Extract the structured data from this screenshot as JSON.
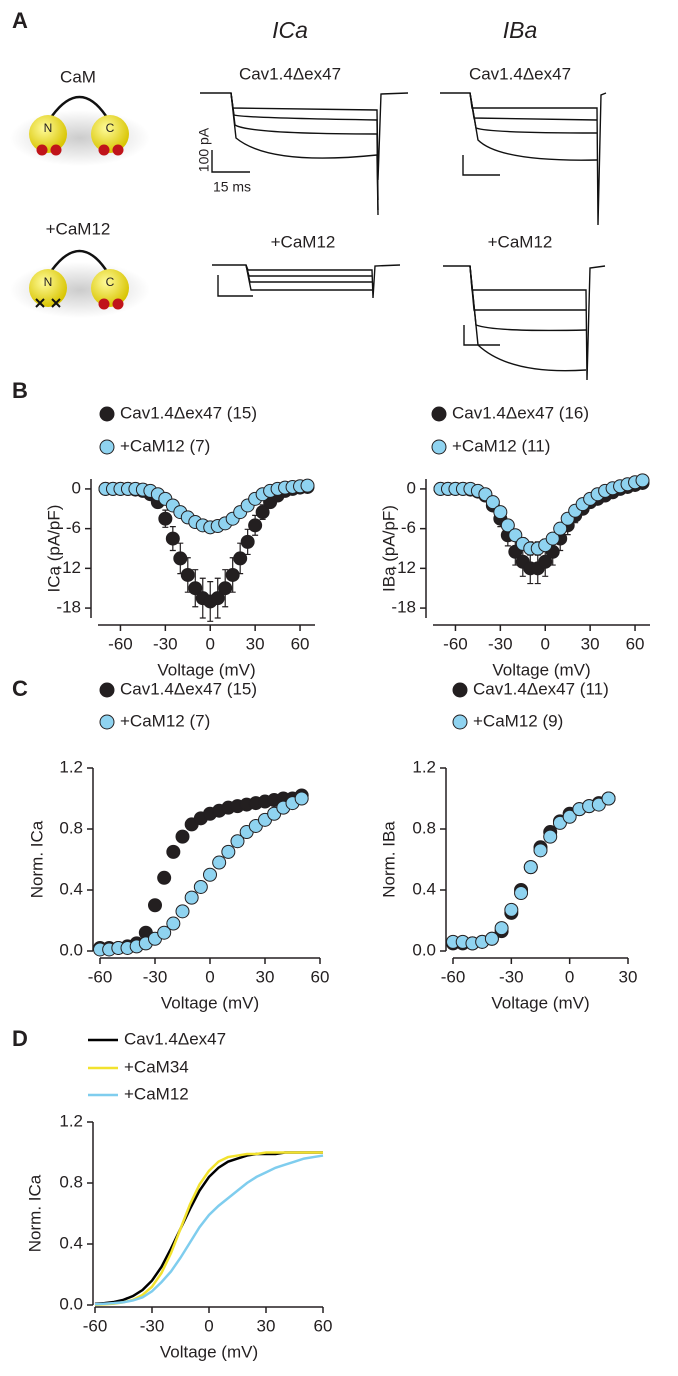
{
  "panel_labels": [
    "A",
    "B",
    "C",
    "D"
  ],
  "panel_a": {
    "columns": [
      "ICa",
      "IBa"
    ],
    "rows": [
      "CaM",
      "+CaM12"
    ],
    "lobes": [
      "N",
      "C",
      "N",
      "C"
    ],
    "trace_labels": [
      "Cav1.4Δex47",
      "Cav1.4Δex47",
      "+CaM12",
      "+CaM12"
    ],
    "scale_bar": [
      "100 pA",
      "15 ms"
    ]
  },
  "chart_data": [
    {
      "type": "scatter",
      "x_label": "Voltage (mV)",
      "y_label": "ICa (pA/pF)",
      "xlim": [
        -75,
        70
      ],
      "ylim": [
        -19.5,
        1.5
      ],
      "xticks": [
        -60,
        -30,
        0,
        30,
        60
      ],
      "yticks": [
        0,
        -6,
        -12,
        -18
      ],
      "x": [
        -70,
        -65,
        -60,
        -55,
        -50,
        -45,
        -40,
        -35,
        -30,
        -25,
        -20,
        -15,
        -10,
        -5,
        0,
        5,
        10,
        15,
        20,
        25,
        30,
        35,
        40,
        45,
        50,
        55,
        60,
        65
      ],
      "series": [
        {
          "name": "Cav1.4Δex47 (15)",
          "color": "#231f20",
          "values": [
            0,
            0,
            0,
            0,
            -0.1,
            -0.3,
            -0.8,
            -2,
            -4.5,
            -7.5,
            -10.5,
            -13,
            -15,
            -16.5,
            -17,
            -16.5,
            -15,
            -13,
            -10.5,
            -8,
            -5.5,
            -3.5,
            -2,
            -1,
            -0.3,
            0,
            0.2,
            0.3
          ],
          "errors": [
            0,
            0,
            0,
            0,
            0.1,
            0.2,
            0.4,
            0.8,
            1.3,
            1.8,
            2.3,
            2.6,
            2.8,
            3,
            3,
            3,
            2.8,
            2.6,
            2.3,
            1.9,
            1.5,
            1.1,
            0.7,
            0.5,
            0.3,
            0.2,
            0.2,
            0.2
          ]
        },
        {
          "name": "+CaM12 (7)",
          "color": "#8fd3f0",
          "values": [
            0,
            0,
            0,
            0,
            0,
            -0.1,
            -0.3,
            -0.8,
            -1.5,
            -2.5,
            -3.5,
            -4.3,
            -5,
            -5.5,
            -5.8,
            -5.6,
            -5.2,
            -4.5,
            -3.5,
            -2.5,
            -1.5,
            -0.8,
            -0.3,
            0,
            0.2,
            0.3,
            0.4,
            0.5
          ],
          "errors": [
            0,
            0,
            0,
            0,
            0,
            0.1,
            0.1,
            0.2,
            0.3,
            0.4,
            0.5,
            0.5,
            0.6,
            0.6,
            0.6,
            0.6,
            0.6,
            0.5,
            0.5,
            0.4,
            0.3,
            0.2,
            0.2,
            0.1,
            0.1,
            0.1,
            0.1,
            0.1
          ]
        }
      ]
    },
    {
      "type": "scatter",
      "x_label": "Voltage (mV)",
      "y_label": "IBa (pA/pF)",
      "xlim": [
        -75,
        70
      ],
      "ylim": [
        -19.5,
        1.5
      ],
      "xticks": [
        -60,
        -30,
        0,
        30,
        60
      ],
      "yticks": [
        0,
        -6,
        -12,
        -18
      ],
      "x": [
        -70,
        -65,
        -60,
        -55,
        -50,
        -45,
        -40,
        -35,
        -30,
        -25,
        -20,
        -15,
        -10,
        -5,
        0,
        5,
        10,
        15,
        20,
        25,
        30,
        35,
        40,
        45,
        50,
        55,
        60,
        65
      ],
      "series": [
        {
          "name": "Cav1.4Δex47 (16)",
          "color": "#231f20",
          "values": [
            0,
            0,
            0,
            0,
            -0.1,
            -0.4,
            -1,
            -2.5,
            -4.5,
            -7,
            -9.5,
            -11,
            -12,
            -12,
            -11,
            -9.5,
            -7.5,
            -5.5,
            -4,
            -3,
            -2,
            -1.5,
            -1,
            -0.5,
            0,
            0.3,
            0.6,
            0.9
          ],
          "errors": [
            0,
            0,
            0,
            0,
            0.1,
            0.2,
            0.4,
            0.8,
            1.2,
            1.6,
            2,
            2.2,
            2.3,
            2.3,
            2.2,
            2,
            1.8,
            1.4,
            1.1,
            0.8,
            0.6,
            0.5,
            0.4,
            0.3,
            0.2,
            0.2,
            0.2,
            0.2
          ]
        },
        {
          "name": "+CaM12 (11)",
          "color": "#8fd3f0",
          "values": [
            0,
            0,
            0,
            0,
            0,
            -0.3,
            -0.8,
            -2,
            -3.5,
            -5.5,
            -7,
            -8.3,
            -9,
            -9,
            -8.5,
            -7.5,
            -6,
            -4.5,
            -3.3,
            -2.3,
            -1.5,
            -0.8,
            -0.3,
            0.1,
            0.4,
            0.7,
            1,
            1.3
          ],
          "errors": [
            0,
            0,
            0,
            0,
            0,
            0.1,
            0.2,
            0.3,
            0.5,
            0.7,
            0.8,
            0.9,
            1,
            1,
            0.9,
            0.8,
            0.7,
            0.6,
            0.5,
            0.4,
            0.3,
            0.2,
            0.2,
            0.1,
            0.1,
            0.1,
            0.1,
            0.1
          ]
        }
      ]
    },
    {
      "type": "scatter",
      "x_label": "Voltage (mV)",
      "y_label": "Norm. ICa",
      "xlim": [
        -60,
        60
      ],
      "ylim": [
        0,
        1.2
      ],
      "xticks": [
        -60,
        -30,
        0,
        30,
        60
      ],
      "yticks": [
        {
          "value": 0,
          "label": "0.0"
        },
        0.4,
        0.8,
        1.2
      ],
      "x": [
        -60,
        -55,
        -50,
        -45,
        -40,
        -35,
        -30,
        -25,
        -20,
        -15,
        -10,
        -5,
        0,
        5,
        10,
        15,
        20,
        25,
        30,
        35,
        40,
        45,
        50
      ],
      "series": [
        {
          "name": "Cav1.4Δex47 (15)",
          "color": "#231f20",
          "values": [
            0.02,
            0.02,
            0.02,
            0.03,
            0.05,
            0.12,
            0.3,
            0.48,
            0.65,
            0.75,
            0.83,
            0.87,
            0.9,
            0.92,
            0.94,
            0.95,
            0.96,
            0.97,
            0.98,
            0.99,
            1.0,
            1.0,
            1.02
          ]
        },
        {
          "name": "+CaM12 (7)",
          "color": "#8fd3f0",
          "values": [
            0.01,
            0.01,
            0.02,
            0.02,
            0.03,
            0.05,
            0.08,
            0.12,
            0.18,
            0.26,
            0.35,
            0.42,
            0.5,
            0.58,
            0.65,
            0.72,
            0.78,
            0.82,
            0.86,
            0.9,
            0.94,
            0.97,
            1.0
          ]
        }
      ]
    },
    {
      "type": "scatter",
      "x_label": "Voltage (mV)",
      "y_label": "Norm. IBa",
      "xlim": [
        -60,
        30
      ],
      "ylim": [
        0,
        1.2
      ],
      "xticks": [
        -60,
        -30,
        0,
        30
      ],
      "yticks": [
        {
          "value": 0,
          "label": "0.0"
        },
        0.4,
        0.8,
        1.2
      ],
      "x": [
        -60,
        -55,
        -50,
        -45,
        -40,
        -35,
        -30,
        -25,
        -20,
        -15,
        -10,
        -5,
        0,
        5,
        10,
        15,
        20
      ],
      "series": [
        {
          "name": "Cav1.4Δex47 (11)",
          "color": "#231f20",
          "values": [
            0.05,
            0.05,
            0.05,
            0.06,
            0.08,
            0.13,
            0.25,
            0.4,
            0.55,
            0.68,
            0.78,
            0.85,
            0.9,
            0.93,
            0.95,
            0.97,
            1.0
          ]
        },
        {
          "name": "+CaM12 (9)",
          "color": "#8fd3f0",
          "values": [
            0.06,
            0.06,
            0.05,
            0.06,
            0.08,
            0.15,
            0.27,
            0.38,
            0.55,
            0.66,
            0.75,
            0.84,
            0.88,
            0.93,
            0.95,
            0.96,
            1.0
          ]
        }
      ]
    },
    {
      "type": "line",
      "x_label": "Voltage (mV)",
      "y_label": "Norm. ICa",
      "xlim": [
        -60,
        60
      ],
      "ylim": [
        0,
        1.2
      ],
      "xticks": [
        -60,
        -30,
        0,
        30,
        60
      ],
      "yticks": [
        {
          "value": 0,
          "label": "0.0"
        },
        0.4,
        0.8,
        1.2
      ],
      "x": [
        -60,
        -55,
        -50,
        -45,
        -40,
        -35,
        -30,
        -25,
        -20,
        -15,
        -10,
        -5,
        0,
        5,
        10,
        15,
        20,
        25,
        30,
        35,
        40,
        45,
        50,
        55,
        60
      ],
      "series": [
        {
          "name": "Cav1.4Δex47",
          "color": "#000000",
          "values": [
            0.007,
            0.012,
            0.02,
            0.034,
            0.059,
            0.098,
            0.16,
            0.25,
            0.37,
            0.5,
            0.63,
            0.75,
            0.84,
            0.9,
            0.94,
            0.96,
            0.98,
            0.99,
            0.99,
            0.99,
            1,
            1,
            1,
            1,
            1
          ]
        },
        {
          "name": "+CaM34",
          "color": "#f2e22e",
          "values": [
            0.002,
            0.005,
            0.009,
            0.018,
            0.034,
            0.066,
            0.12,
            0.21,
            0.34,
            0.5,
            0.66,
            0.79,
            0.88,
            0.94,
            0.97,
            0.98,
            0.99,
            0.99,
            1,
            1,
            1,
            1,
            1,
            1,
            1
          ]
        },
        {
          "name": "+CaM12",
          "color": "#7fcdee",
          "values": [
            0.005,
            0.008,
            0.012,
            0.018,
            0.03,
            0.05,
            0.09,
            0.15,
            0.22,
            0.31,
            0.41,
            0.51,
            0.59,
            0.65,
            0.7,
            0.75,
            0.8,
            0.84,
            0.87,
            0.9,
            0.92,
            0.94,
            0.96,
            0.97,
            0.98
          ]
        }
      ]
    }
  ]
}
